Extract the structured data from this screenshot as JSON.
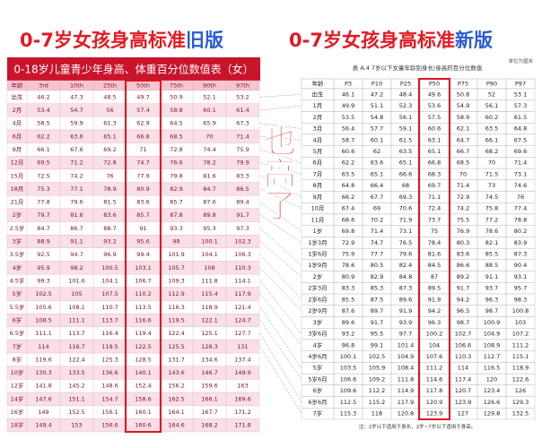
{
  "old": {
    "title_main": "0-7岁女孩身高标准",
    "title_tag": "旧版",
    "caption": "0-18岁儿童青少年身高、体重百分位数值表（女）",
    "header": [
      "年龄",
      "3rd",
      "10th",
      "25th",
      "50th",
      "75th",
      "90th",
      "97th"
    ],
    "rows": [
      {
        "age": "出生",
        "values": [
          46.2,
          47.3,
          48.5,
          49.7,
          50.9,
          52.1,
          53.2
        ]
      },
      {
        "age": "2月",
        "values": [
          53.4,
          54.7,
          56.0,
          57.4,
          58.8,
          60.1,
          61.4
        ]
      },
      {
        "age": "4月",
        "values": [
          58.5,
          59.9,
          61.3,
          62.9,
          64.5,
          65.9,
          67.3
        ]
      },
      {
        "age": "6月",
        "values": [
          62.2,
          63.6,
          65.1,
          66.8,
          68.5,
          70.0,
          71.4
        ]
      },
      {
        "age": "9月",
        "values": [
          66.1,
          67.6,
          69.2,
          71.0,
          72.8,
          74.4,
          75.9
        ]
      },
      {
        "age": "12月",
        "values": [
          69.5,
          71.2,
          72.8,
          74.7,
          76.6,
          78.2,
          79.9
        ]
      },
      {
        "age": "15月",
        "values": [
          72.5,
          74.2,
          76.0,
          77.9,
          79.8,
          81.6,
          83.3
        ]
      },
      {
        "age": "18月",
        "values": [
          75.3,
          77.1,
          78.9,
          80.9,
          82.9,
          84.7,
          86.5
        ]
      },
      {
        "age": "21月",
        "values": [
          77.8,
          79.6,
          81.5,
          83.6,
          85.7,
          87.6,
          89.4
        ]
      },
      {
        "age": "2岁",
        "values": [
          79.7,
          81.6,
          83.6,
          85.7,
          87.8,
          89.8,
          91.7
        ]
      },
      {
        "age": "2.5岁",
        "values": [
          84.7,
          86.7,
          88.7,
          91.0,
          93.3,
          95.3,
          97.3
        ]
      },
      {
        "age": "3岁",
        "values": [
          88.9,
          91.1,
          93.2,
          95.6,
          98.0,
          100.1,
          102.3
        ]
      },
      {
        "age": "3.5岁",
        "values": [
          92.5,
          94.7,
          96.9,
          99.4,
          101.9,
          104.1,
          106.3
        ]
      },
      {
        "age": "4岁",
        "values": [
          95.9,
          98.2,
          100.5,
          103.1,
          105.7,
          108.0,
          110.3
        ]
      },
      {
        "age": "4.5岁",
        "values": [
          99.3,
          101.6,
          104.1,
          106.7,
          109.3,
          111.8,
          114.1
        ]
      },
      {
        "age": "5岁",
        "values": [
          102.5,
          105.0,
          107.5,
          110.2,
          112.9,
          115.4,
          117.9
        ]
      },
      {
        "age": "5.5岁",
        "values": [
          105.6,
          108.1,
          110.7,
          113.5,
          116.3,
          118.9,
          121.4
        ]
      },
      {
        "age": "6岁",
        "values": [
          108.5,
          111.1,
          113.7,
          116.6,
          119.5,
          122.1,
          124.7
        ]
      },
      {
        "age": "6.5岁",
        "values": [
          111.1,
          113.7,
          116.4,
          119.4,
          122.4,
          125.1,
          127.7
        ]
      },
      {
        "age": "7岁",
        "values": [
          114.0,
          116.7,
          119.5,
          122.5,
          125.5,
          128.3,
          131.0
        ]
      },
      {
        "age": "8岁",
        "values": [
          119.6,
          122.4,
          125.3,
          128.5,
          131.7,
          134.6,
          137.4
        ]
      },
      {
        "age": "10岁",
        "values": [
          130.3,
          133.5,
          136.6,
          140.1,
          143.6,
          146.7,
          149.9
        ]
      },
      {
        "age": "12岁",
        "values": [
          141.8,
          145.2,
          148.6,
          152.4,
          156.2,
          159.6,
          163.0
        ]
      },
      {
        "age": "14岁",
        "values": [
          147.6,
          151.1,
          154.7,
          158.6,
          162.5,
          166.1,
          169.6
        ]
      },
      {
        "age": "16岁",
        "values": [
          149.0,
          152.5,
          156.1,
          160.1,
          164.1,
          167.7,
          171.2
        ]
      },
      {
        "age": "18岁",
        "values": [
          149.4,
          153.0,
          156.6,
          160.6,
          164.6,
          168.2,
          171.8
        ]
      }
    ]
  },
  "new": {
    "title_main": "0-7岁女孩身高标准",
    "title_tag": "新版",
    "caption": "表 A.4  7岁以下女童年龄别身长/身高的百分位数值",
    "unit": "单位为厘米",
    "header": [
      "年龄",
      "P3",
      "P10",
      "P25",
      "P50",
      "P75",
      "P90",
      "P97"
    ],
    "rows": [
      {
        "age": "出生",
        "values": [
          46.1,
          47.2,
          48.4,
          49.6,
          50.8,
          52.0,
          53.1
        ]
      },
      {
        "age": "1月",
        "values": [
          49.9,
          51.1,
          52.3,
          53.6,
          54.9,
          56.1,
          57.3
        ]
      },
      {
        "age": "2月",
        "values": [
          53.5,
          54.8,
          56.1,
          57.5,
          58.9,
          60.2,
          61.5
        ]
      },
      {
        "age": "3月",
        "values": [
          56.4,
          57.7,
          59.1,
          60.6,
          62.1,
          63.5,
          64.8
        ]
      },
      {
        "age": "4月",
        "values": [
          58.7,
          60.1,
          61.5,
          63.1,
          64.7,
          66.1,
          67.5
        ]
      },
      {
        "age": "5月",
        "values": [
          60.6,
          62.0,
          63.5,
          65.1,
          66.7,
          68.2,
          69.6
        ]
      },
      {
        "age": "6月",
        "values": [
          62.2,
          63.6,
          65.1,
          66.8,
          68.5,
          70.0,
          71.4
        ]
      },
      {
        "age": "7月",
        "values": [
          63.5,
          65.1,
          66.6,
          68.3,
          70.0,
          71.5,
          73.1
        ]
      },
      {
        "age": "8月",
        "values": [
          64.8,
          66.4,
          68.0,
          69.7,
          71.4,
          73.0,
          74.6
        ]
      },
      {
        "age": "9月",
        "values": [
          66.2,
          67.7,
          69.3,
          71.1,
          72.9,
          74.5,
          76.0
        ]
      },
      {
        "age": "10月",
        "values": [
          67.4,
          69.0,
          70.6,
          72.4,
          74.2,
          75.8,
          77.4
        ]
      },
      {
        "age": "11月",
        "values": [
          68.6,
          70.2,
          71.9,
          73.7,
          75.5,
          77.2,
          78.8
        ]
      },
      {
        "age": "1岁",
        "values": [
          69.8,
          71.4,
          73.1,
          75.0,
          76.9,
          78.6,
          80.2
        ]
      },
      {
        "age": "1岁3月",
        "values": [
          72.9,
          74.7,
          76.5,
          78.4,
          80.3,
          82.1,
          83.9
        ]
      },
      {
        "age": "1岁6月",
        "values": [
          75.9,
          77.7,
          79.6,
          81.6,
          83.6,
          85.5,
          87.3
        ]
      },
      {
        "age": "1岁9月",
        "values": [
          78.6,
          80.5,
          82.4,
          84.5,
          86.6,
          88.5,
          90.4
        ]
      },
      {
        "age": "2岁",
        "values": [
          80.9,
          82.9,
          84.8,
          87.0,
          89.2,
          91.1,
          93.1
        ]
      },
      {
        "age": "2岁3月",
        "values": [
          83.3,
          85.3,
          87.3,
          89.5,
          91.7,
          93.7,
          95.7
        ]
      },
      {
        "age": "2岁6月",
        "values": [
          85.5,
          87.5,
          89.6,
          91.9,
          94.2,
          96.3,
          98.3
        ]
      },
      {
        "age": "2岁9月",
        "values": [
          87.6,
          89.7,
          91.9,
          94.2,
          96.5,
          98.7,
          100.8
        ]
      },
      {
        "age": "3岁",
        "values": [
          89.6,
          91.7,
          93.9,
          96.3,
          98.7,
          100.9,
          103.0
        ]
      },
      {
        "age": "3岁6月",
        "values": [
          93.2,
          95.5,
          97.7,
          100.2,
          102.7,
          104.9,
          107.2
        ]
      },
      {
        "age": "4岁",
        "values": [
          96.8,
          99.1,
          101.4,
          104.0,
          106.6,
          108.9,
          111.2
        ]
      },
      {
        "age": "4岁6月",
        "values": [
          100.1,
          102.5,
          104.9,
          107.6,
          110.3,
          112.7,
          115.1
        ]
      },
      {
        "age": "5岁",
        "values": [
          103.5,
          105.9,
          108.4,
          111.2,
          114.0,
          116.5,
          118.9
        ]
      },
      {
        "age": "5岁6月",
        "values": [
          106.6,
          109.2,
          111.8,
          114.6,
          117.4,
          120.0,
          122.6
        ]
      },
      {
        "age": "6岁",
        "values": [
          109.6,
          112.2,
          114.9,
          117.8,
          120.7,
          123.4,
          126.0
        ]
      },
      {
        "age": "6岁6月",
        "values": [
          112.5,
          115.2,
          117.9,
          120.9,
          123.9,
          126.6,
          129.3
        ]
      },
      {
        "age": "7岁",
        "values": [
          115.3,
          118.0,
          120.8,
          123.9,
          127.0,
          129.8,
          132.5
        ]
      }
    ],
    "note": "注：2岁以下适用于身长，2岁~7岁以下适用于身高。"
  },
  "callout": [
    "也",
    "高",
    "了"
  ]
}
